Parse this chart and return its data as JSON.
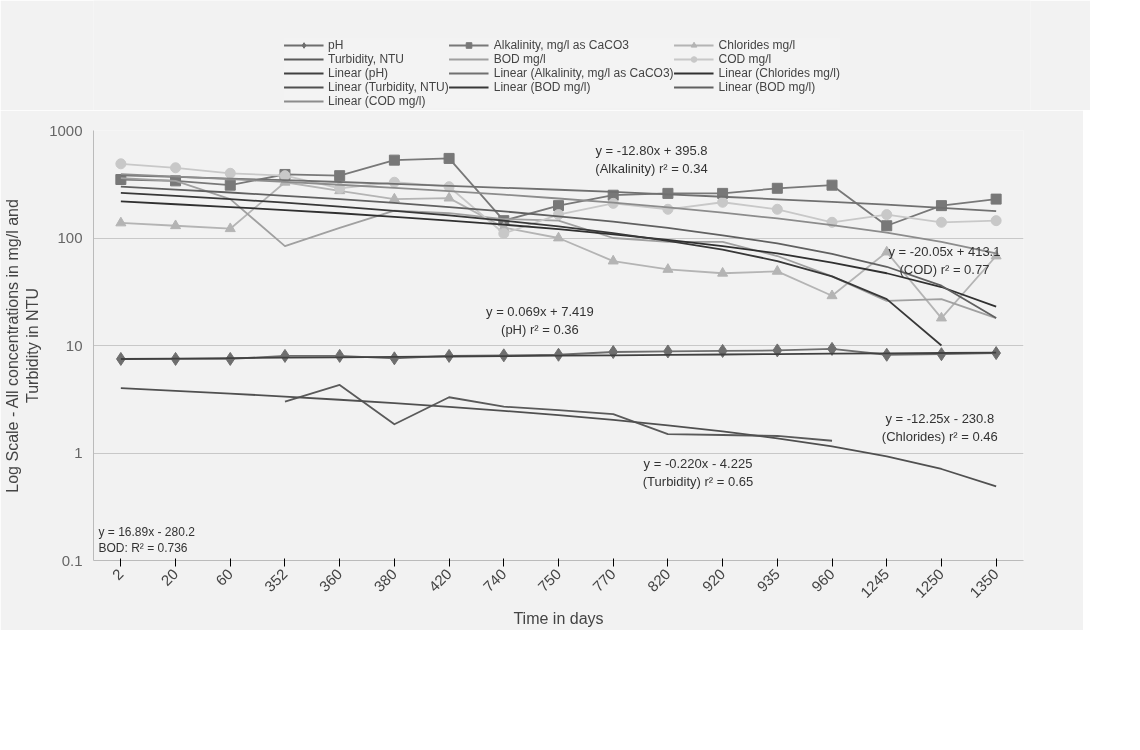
{
  "chart_data": {
    "type": "line",
    "xlabel": "Time in days",
    "ylabel": "Log Scale - All concentrations in mg/l and\nTurbidity in NTU",
    "categories": [
      "2",
      "20",
      "60",
      "352",
      "360",
      "380",
      "420",
      "740",
      "750",
      "770",
      "820",
      "920",
      "935",
      "960",
      "1245",
      "1250",
      "1350"
    ],
    "log": "y",
    "ylim": [
      0.1,
      1000
    ],
    "yticks": [
      0.1,
      1,
      10,
      100,
      1000
    ],
    "grid": "y",
    "legend": "top",
    "line_style": "solid",
    "series": [
      {
        "name": "pH",
        "color": "#6e6e6e",
        "marker": "diamond",
        "values": [
          7.5,
          7.5,
          7.5,
          8,
          8,
          7.6,
          8,
          8.1,
          8.2,
          8.7,
          8.8,
          8.9,
          9,
          9.3,
          8.2,
          8.3,
          8.5
        ]
      },
      {
        "name": "Alkalinity, mg/l as CaCO3",
        "color": "#787878",
        "marker": "square",
        "values": [
          350,
          340,
          310,
          390,
          380,
          530,
          550,
          145,
          200,
          250,
          260,
          260,
          290,
          310,
          130,
          200,
          230
        ]
      },
      {
        "name": "Chlorides mg/l",
        "color": "#b4b4b4",
        "marker": "triangle",
        "values": [
          138,
          130,
          122,
          330,
          275,
          230,
          235,
          125,
          100,
          61,
          51,
          47,
          49,
          29,
          74,
          18,
          68
        ]
      },
      {
        "name": "Turbidity, NTU",
        "color": "#5a5a5a",
        "marker": "none",
        "values": [
          null,
          null,
          null,
          3.0,
          4.3,
          1.85,
          3.3,
          2.7,
          2.5,
          2.3,
          1.5,
          1.47,
          1.44,
          1.3,
          null,
          null,
          null
        ]
      },
      {
        "name": "BOD mg/l",
        "color": "#a0a0a0",
        "marker": "none",
        "values": [
          360,
          340,
          230,
          84,
          124,
          180,
          170,
          150,
          145,
          100,
          92,
          92,
          68,
          44,
          26,
          27,
          18
        ]
      },
      {
        "name": "COD mg/l",
        "color": "#c8c8c8",
        "marker": "circle",
        "values": [
          490,
          450,
          400,
          380,
          290,
          330,
          300,
          110,
          165,
          210,
          185,
          215,
          185,
          140,
          165,
          140,
          145
        ]
      },
      {
        "name": "Linear (pH)",
        "color": "#404040",
        "marker": "none",
        "values": [
          7.49,
          7.56,
          7.63,
          7.7,
          7.76,
          7.83,
          7.9,
          7.97,
          8.04,
          8.11,
          8.18,
          8.25,
          8.32,
          8.39,
          8.45,
          8.52,
          8.59
        ]
      },
      {
        "name": "Linear (Alkalinity, mg/l as CaCO3)",
        "color": "#707070",
        "marker": "none",
        "values": [
          383,
          370,
          357,
          345,
          332,
          319,
          306,
          293,
          281,
          268,
          255,
          242,
          229,
          217,
          204,
          191,
          178
        ]
      },
      {
        "name": "Linear (Chlorides mg/l)",
        "color": "#303030",
        "marker": "none",
        "values": [
          219,
          206,
          194,
          182,
          170,
          157,
          145,
          133,
          121,
          108,
          96,
          84,
          72,
          59,
          47,
          35,
          23
        ]
      },
      {
        "name": "Linear (Turbidity, NTU)",
        "color": "#505050",
        "marker": "none",
        "values": [
          4.01,
          3.79,
          3.57,
          3.35,
          3.13,
          2.91,
          2.69,
          2.47,
          2.25,
          2.03,
          1.81,
          1.59,
          1.37,
          1.15,
          0.93,
          0.71,
          0.49
        ]
      },
      {
        "name": "Linear (BOD mg/l)",
        "color": "#383838",
        "marker": "none",
        "values": [
          263,
          246,
          230,
          213,
          196,
          179,
          162,
          145,
          128,
          111,
          94,
          78,
          61,
          44,
          27,
          10,
          null
        ]
      },
      {
        "name": "Linear (BOD mg/l)",
        "color": "#606060",
        "marker": "none",
        "values": [
          300,
          282,
          265,
          247,
          230,
          212,
          194,
          177,
          159,
          142,
          124,
          106,
          89,
          71,
          54,
          36,
          18
        ]
      },
      {
        "name": "Linear (COD mg/l)",
        "color": "#8c8c8c",
        "marker": "none",
        "values": [
          393,
          373,
          353,
          333,
          313,
          293,
          273,
          253,
          233,
          213,
          193,
          172,
          152,
          132,
          112,
          92,
          72
        ]
      }
    ],
    "annotations": [
      "y = 16.89x - 280.2\nBOD: R² = 0.736",
      "y = -12.80x + 395.8\n(Alkalinity) r² = 0.34",
      "y = -20.05x + 413.1\n(COD) r² = 0.77",
      "y = 0.069x + 7.419\n(pH) r² = 0.36",
      "y = -12.25x - 230.8\n(Chlorides) r² = 0.46",
      "y = -0.220x - 4.225\n(Turbidity) r² = 0.65"
    ]
  }
}
